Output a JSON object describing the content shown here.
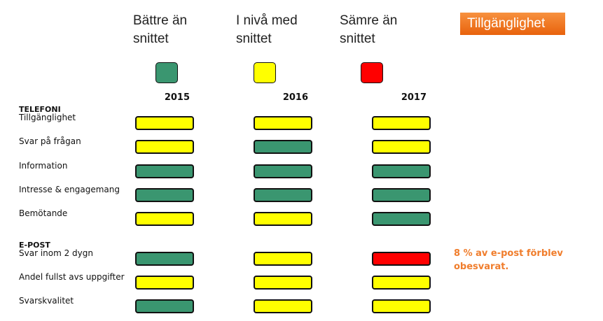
{
  "tag": "Tillgänglighet",
  "legend": [
    {
      "label": "Bättre än snittet",
      "color": "#3a9670"
    },
    {
      "label": "I nivå med snittet",
      "color": "#ffff00"
    },
    {
      "label": "Sämre än snittet",
      "color": "#ff0000"
    }
  ],
  "years": [
    "2015",
    "2016",
    "2017"
  ],
  "sections": [
    {
      "title": "TELEFONI",
      "rows": [
        {
          "label": "Tillgänglighet",
          "status": [
            1,
            1,
            1
          ]
        },
        {
          "label": "Svar på frågan",
          "status": [
            1,
            0,
            1
          ]
        },
        {
          "label": "Information",
          "status": [
            0,
            0,
            0
          ]
        },
        {
          "label": "Intresse & engagemang",
          "status": [
            0,
            0,
            0
          ]
        },
        {
          "label": "Bemötande",
          "status": [
            1,
            1,
            0
          ]
        }
      ]
    },
    {
      "title": "E-POST",
      "rows": [
        {
          "label": "Svar inom 2 dygn",
          "status": [
            0,
            1,
            2
          ]
        },
        {
          "label": "Andel fullst avs uppgifter",
          "status": [
            1,
            1,
            1
          ]
        },
        {
          "label": "Svarskvalitet",
          "status": [
            0,
            1,
            1
          ]
        }
      ]
    }
  ],
  "note": "8 % av e-post förblev obesvarat."
}
